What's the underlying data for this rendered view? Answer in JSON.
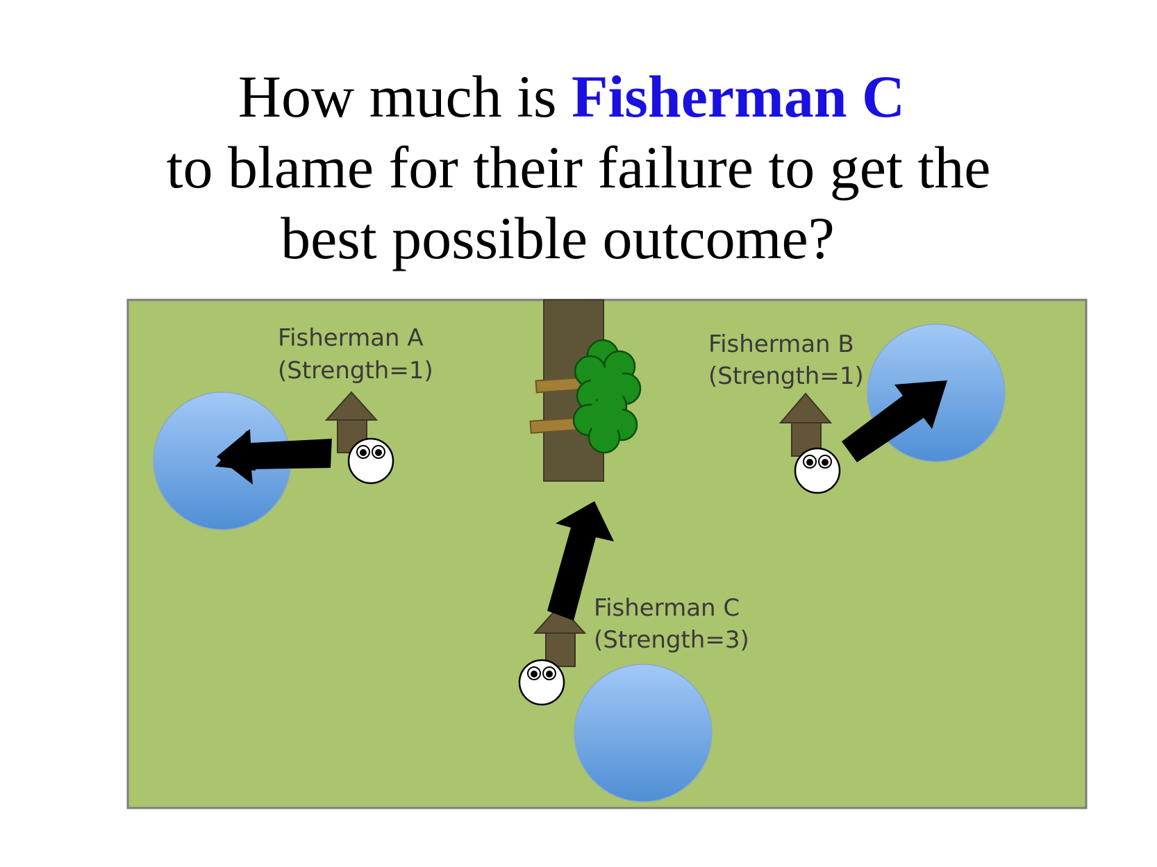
{
  "question": {
    "before": "How much is ",
    "highlight": "Fisherman C",
    "line2": "to blame for their failure to get the",
    "line3": "best possible outcome?"
  },
  "colors": {
    "highlight": "#1a10e0",
    "field": "#abc46e",
    "pond_light": "#a2c8f6",
    "pond_dark": "#4f8fd5",
    "house": "#635638",
    "tree_trunk": "#5e5539",
    "tree_leaves": "#1b8f1b",
    "arrow": "#000000"
  },
  "fishermen": [
    {
      "name": "Fisherman A",
      "strength": "(Strength=1)"
    },
    {
      "name": "Fisherman B",
      "strength": "(Strength=1)"
    },
    {
      "name": "Fisherman C",
      "strength": "(Strength=3)"
    }
  ]
}
